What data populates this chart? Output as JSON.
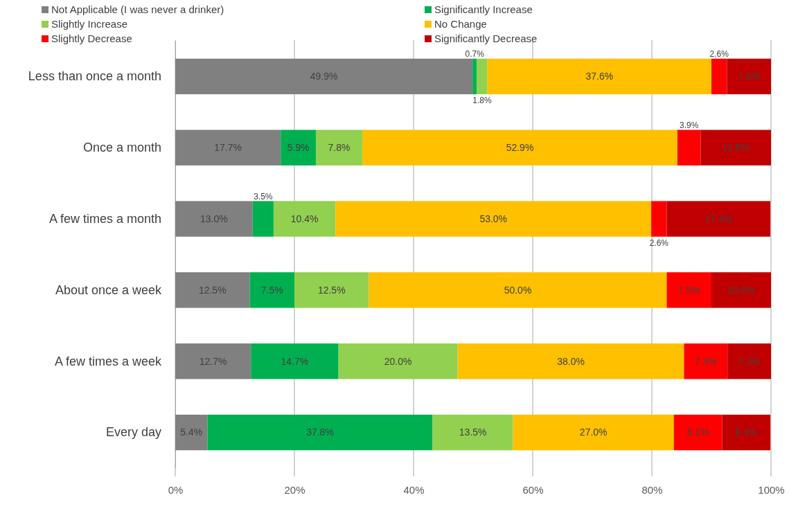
{
  "chart_data": {
    "type": "bar",
    "orientation": "horizontal",
    "stacked": true,
    "legend": "top",
    "grid": "x",
    "categories": [
      "Less than once a month",
      "Once a month",
      "A few times a month",
      "About once a week",
      "A few times a week",
      "Every day"
    ],
    "xlim": [
      0,
      100
    ],
    "xticks": [
      {
        "value": 0,
        "label": "0%"
      },
      {
        "value": 20,
        "label": "20%"
      },
      {
        "value": 40,
        "label": "40%"
      },
      {
        "value": 60,
        "label": "60%"
      },
      {
        "value": 80,
        "label": "80%"
      },
      {
        "value": 100,
        "label": "100%"
      }
    ],
    "series": [
      {
        "name": "Not Applicable (I was never a drinker)",
        "color": "#808080",
        "values": [
          49.9,
          17.7,
          13.0,
          12.5,
          12.7,
          5.4
        ],
        "value_labels": [
          "49.9%",
          "17.7%",
          "13.0%",
          "12.5%",
          "12.7%",
          "5.4%"
        ]
      },
      {
        "name": "Significantly Increase",
        "color": "#00b050",
        "values": [
          0.7,
          5.9,
          3.5,
          7.5,
          14.7,
          37.8
        ],
        "value_labels": [
          "0.7%",
          "5.9%",
          "3.5%",
          "7.5%",
          "14.7%",
          "37.8%"
        ]
      },
      {
        "name": "Slightly Increase",
        "color": "#92d050",
        "values": [
          1.8,
          7.8,
          10.4,
          12.5,
          20.0,
          13.5
        ],
        "value_labels": [
          "1.8%",
          "7.8%",
          "10.4%",
          "12.5%",
          "20.0%",
          "13.5%"
        ]
      },
      {
        "name": "No Change",
        "color": "#ffc000",
        "values": [
          37.6,
          52.9,
          53.0,
          50.0,
          38.0,
          27.0
        ],
        "value_labels": [
          "37.6%",
          "52.9%",
          "53.0%",
          "50.0%",
          "38.0%",
          "27.0%"
        ]
      },
      {
        "name": "Slightly Decrease",
        "color": "#ff0000",
        "values": [
          2.6,
          3.9,
          2.6,
          7.5,
          7.3,
          8.1
        ],
        "value_labels": [
          "2.6%",
          "3.9%",
          "2.6%",
          "7.5%",
          "7.3%",
          "8.1%"
        ]
      },
      {
        "name": "Significantly Decrease",
        "color": "#c00000",
        "values": [
          7.4,
          11.8,
          17.4,
          10.0,
          7.3,
          8.1
        ],
        "value_labels": [
          "7.4%",
          "11.8%",
          "17.4%",
          "10.0%",
          "7.3%",
          "8.1%"
        ]
      }
    ]
  }
}
